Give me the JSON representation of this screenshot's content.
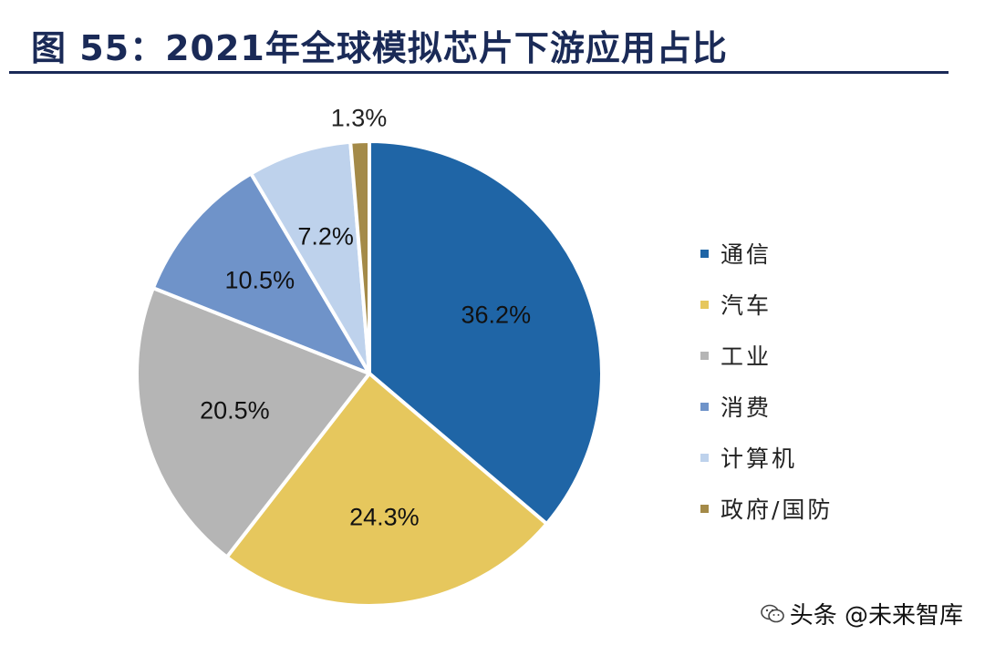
{
  "title": "图 55：2021年全球模拟芯片下游应用占比",
  "chart_data": {
    "type": "pie",
    "title": "图 55：2021年全球模拟芯片下游应用占比",
    "categories": [
      "通信",
      "汽车",
      "工业",
      "消费",
      "计算机",
      "政府/国防"
    ],
    "values": [
      36.2,
      24.3,
      20.5,
      10.5,
      7.2,
      1.3
    ],
    "value_labels": [
      "36.2%",
      "24.3%",
      "20.5%",
      "10.5%",
      "7.2%",
      "1.3%"
    ],
    "colors": [
      "#1f65a6",
      "#e6c75d",
      "#b5b5b5",
      "#6f93c9",
      "#bed2ec",
      "#a48a48"
    ],
    "start": "12 o'clock",
    "direction": "clockwise",
    "legend_position": "right"
  },
  "watermark": {
    "text": "头条 @未来智库",
    "icon": "wechat-icon"
  }
}
